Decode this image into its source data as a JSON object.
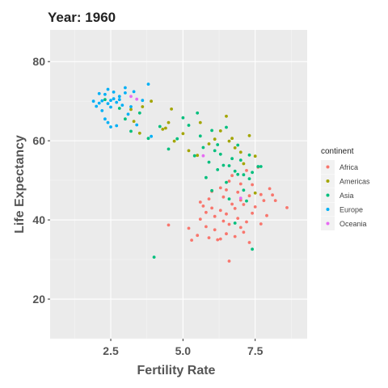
{
  "chart_data": {
    "type": "scatter",
    "title": "Year: 1960",
    "xlabel": "Fertility Rate",
    "ylabel": "Life Expectancy",
    "xlim": [
      0.4,
      9.3
    ],
    "ylim": [
      10,
      88
    ],
    "x_ticks": [
      2.5,
      5.0,
      7.5
    ],
    "x_tick_labels": [
      "2.5",
      "5.0",
      "7.5"
    ],
    "y_ticks": [
      20,
      40,
      60,
      80
    ],
    "y_tick_labels": [
      "20",
      "40",
      "60",
      "80"
    ],
    "grid": true,
    "legend": {
      "title": "continent",
      "placement": "right"
    },
    "series": [
      {
        "name": "Africa",
        "color": "#F8766D",
        "points": [
          [
            4.5,
            38.7
          ],
          [
            5.2,
            37.9
          ],
          [
            5.3,
            34.9
          ],
          [
            5.5,
            36.1
          ],
          [
            5.6,
            44.5
          ],
          [
            5.6,
            40.2
          ],
          [
            5.7,
            43.5
          ],
          [
            5.8,
            41.9
          ],
          [
            5.8,
            38.3
          ],
          [
            5.9,
            35.5
          ],
          [
            5.9,
            45.3
          ],
          [
            6.0,
            47.2
          ],
          [
            6.0,
            43.0
          ],
          [
            6.1,
            40.9
          ],
          [
            6.1,
            37.5
          ],
          [
            6.2,
            35.0
          ],
          [
            6.3,
            42.4
          ],
          [
            6.3,
            48.1
          ],
          [
            6.3,
            35.2
          ],
          [
            6.4,
            39.7
          ],
          [
            6.4,
            45.8
          ],
          [
            6.5,
            41.5
          ],
          [
            6.5,
            36.5
          ],
          [
            6.5,
            47.6
          ],
          [
            6.6,
            49.8
          ],
          [
            6.6,
            38.9
          ],
          [
            6.6,
            29.6
          ],
          [
            6.7,
            44.0
          ],
          [
            6.7,
            51.2
          ],
          [
            6.8,
            42.9
          ],
          [
            6.8,
            35.8
          ],
          [
            6.9,
            47.0
          ],
          [
            6.9,
            40.4
          ],
          [
            7.0,
            38.1
          ],
          [
            7.0,
            45.0
          ],
          [
            7.0,
            49.1
          ],
          [
            7.1,
            36.9
          ],
          [
            7.1,
            43.9
          ],
          [
            7.2,
            39.5
          ],
          [
            7.2,
            52.5
          ],
          [
            7.3,
            46.1
          ],
          [
            7.3,
            34.3
          ],
          [
            7.4,
            41.7
          ],
          [
            7.4,
            48.9
          ],
          [
            7.5,
            43.3
          ],
          [
            7.6,
            53.3
          ],
          [
            7.7,
            39.0
          ],
          [
            7.7,
            46.4
          ],
          [
            7.8,
            44.9
          ],
          [
            7.9,
            41.1
          ],
          [
            8.0,
            47.9
          ],
          [
            8.1,
            46.3
          ],
          [
            8.2,
            44.9
          ],
          [
            8.6,
            43.1
          ]
        ]
      },
      {
        "name": "Americas",
        "color": "#A3A500",
        "points": [
          [
            3.2,
            67.9
          ],
          [
            3.3,
            64.9
          ],
          [
            3.5,
            61.9
          ],
          [
            3.6,
            68.6
          ],
          [
            3.9,
            70.0
          ],
          [
            4.3,
            62.9
          ],
          [
            4.4,
            63.2
          ],
          [
            4.5,
            64.6
          ],
          [
            4.6,
            68.0
          ],
          [
            4.7,
            59.9
          ],
          [
            5.0,
            61.8
          ],
          [
            5.2,
            57.5
          ],
          [
            5.5,
            56.3
          ],
          [
            5.6,
            64.6
          ],
          [
            5.9,
            59.2
          ],
          [
            6.1,
            60.4
          ],
          [
            6.3,
            62.5
          ],
          [
            6.5,
            66.2
          ],
          [
            6.6,
            59.9
          ],
          [
            6.7,
            60.6
          ],
          [
            6.8,
            58.2
          ],
          [
            7.0,
            57.1
          ],
          [
            7.1,
            54.2
          ],
          [
            7.3,
            61.3
          ],
          [
            7.5,
            56.1
          ],
          [
            7.5,
            46.8
          ]
        ]
      },
      {
        "name": "Asia",
        "color": "#00BF7D",
        "points": [
          [
            2.3,
            70.4
          ],
          [
            2.8,
            68.2
          ],
          [
            3.0,
            65.5
          ],
          [
            3.2,
            62.4
          ],
          [
            3.5,
            67.0
          ],
          [
            3.8,
            60.6
          ],
          [
            4.0,
            30.6
          ],
          [
            4.2,
            63.6
          ],
          [
            4.5,
            57.9
          ],
          [
            4.8,
            60.5
          ],
          [
            5.0,
            65.8
          ],
          [
            5.2,
            63.9
          ],
          [
            5.4,
            56.2
          ],
          [
            5.5,
            67.0
          ],
          [
            5.6,
            61.2
          ],
          [
            5.7,
            58.3
          ],
          [
            5.8,
            50.7
          ],
          [
            5.9,
            54.6
          ],
          [
            6.0,
            62.6
          ],
          [
            6.0,
            47.4
          ],
          [
            6.1,
            57.5
          ],
          [
            6.2,
            59.0
          ],
          [
            6.2,
            52.7
          ],
          [
            6.3,
            56.6
          ],
          [
            6.4,
            53.8
          ],
          [
            6.5,
            63.4
          ],
          [
            6.5,
            49.5
          ],
          [
            6.6,
            45.3
          ],
          [
            6.6,
            53.7
          ],
          [
            6.7,
            55.5
          ],
          [
            6.8,
            52.3
          ],
          [
            6.8,
            39.2
          ],
          [
            6.9,
            58.9
          ],
          [
            6.9,
            51.5
          ],
          [
            7.0,
            55.1
          ],
          [
            7.1,
            47.5
          ],
          [
            7.1,
            51.4
          ],
          [
            7.2,
            44.8
          ],
          [
            7.3,
            50.4
          ],
          [
            7.3,
            56.4
          ],
          [
            7.4,
            52.0
          ],
          [
            7.4,
            32.6
          ],
          [
            7.6,
            53.5
          ],
          [
            7.7,
            53.5
          ]
        ]
      },
      {
        "name": "Europe",
        "color": "#00B0F6",
        "points": [
          [
            1.9,
            70.0
          ],
          [
            2.0,
            68.7
          ],
          [
            2.1,
            69.5
          ],
          [
            2.1,
            71.9
          ],
          [
            2.2,
            67.6
          ],
          [
            2.2,
            70.1
          ],
          [
            2.3,
            65.5
          ],
          [
            2.3,
            71.7
          ],
          [
            2.4,
            69.4
          ],
          [
            2.4,
            73.0
          ],
          [
            2.5,
            70.2
          ],
          [
            2.5,
            68.5
          ],
          [
            2.6,
            70.6
          ],
          [
            2.6,
            72.3
          ],
          [
            2.7,
            69.7
          ],
          [
            2.7,
            63.8
          ],
          [
            2.8,
            70.4
          ],
          [
            2.8,
            71.2
          ],
          [
            2.9,
            69.0
          ],
          [
            3.0,
            73.4
          ],
          [
            3.0,
            72.1
          ],
          [
            3.1,
            66.7
          ],
          [
            3.2,
            68.6
          ],
          [
            3.3,
            72.4
          ],
          [
            3.4,
            64.0
          ],
          [
            3.8,
            74.3
          ],
          [
            2.4,
            64.6
          ],
          [
            3.6,
            70.2
          ],
          [
            2.5,
            63.5
          ],
          [
            3.9,
            61.1
          ]
        ]
      },
      {
        "name": "Oceania",
        "color": "#E76BF3",
        "points": [
          [
            3.2,
            71.2
          ],
          [
            3.4,
            70.5
          ],
          [
            5.7,
            56.2
          ],
          [
            7.0,
            45.5
          ]
        ]
      }
    ]
  }
}
